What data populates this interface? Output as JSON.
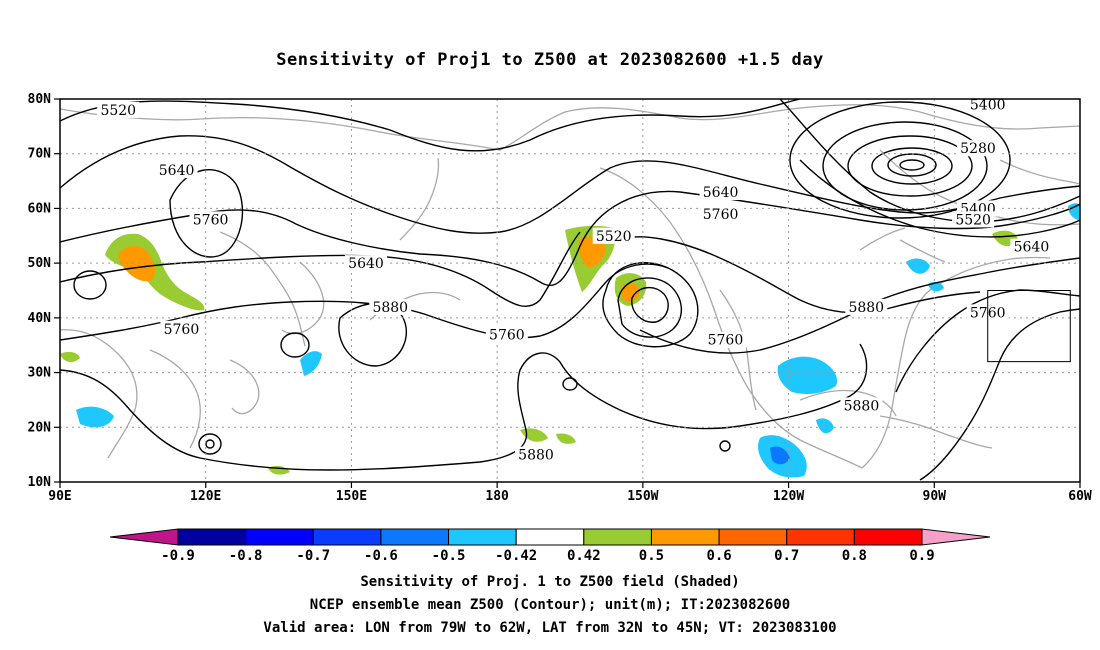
{
  "title": "Sensitivity of Proj1 to Z500 at 2023082600 +1.5 day",
  "map": {
    "lon_range": [
      90,
      300
    ],
    "lat_range": [
      10,
      80
    ],
    "lat_labels": [
      "80N",
      "70N",
      "60N",
      "50N",
      "40N",
      "30N",
      "20N",
      "10N"
    ],
    "lon_labels": [
      "90E",
      "120E",
      "150E",
      "180",
      "150W",
      "120W",
      "90W",
      "60W"
    ],
    "grid": "dotted",
    "valid_area_box": {
      "lon": [
        281,
        298
      ],
      "lat": [
        32,
        45
      ]
    }
  },
  "contour_labels": [
    {
      "text": "5520",
      "lon": 102,
      "lat": 78
    },
    {
      "text": "5640",
      "lon": 114,
      "lat": 67
    },
    {
      "text": "5760",
      "lon": 121,
      "lat": 58
    },
    {
      "text": "5640",
      "lon": 153,
      "lat": 50
    },
    {
      "text": "5880",
      "lon": 158,
      "lat": 42
    },
    {
      "text": "5760",
      "lon": 115,
      "lat": 38
    },
    {
      "text": "5760",
      "lon": 182,
      "lat": 37
    },
    {
      "text": "5520",
      "lon": 204,
      "lat": 55
    },
    {
      "text": "5640",
      "lon": 226,
      "lat": 63
    },
    {
      "text": "5760",
      "lon": 226,
      "lat": 59
    },
    {
      "text": "5760",
      "lon": 227,
      "lat": 36
    },
    {
      "text": "5880",
      "lon": 256,
      "lat": 42
    },
    {
      "text": "5880",
      "lon": 255,
      "lat": 24
    },
    {
      "text": "5880",
      "lon": 188,
      "lat": 15
    },
    {
      "text": "5400",
      "lon": 281,
      "lat": 79
    },
    {
      "text": "5280",
      "lon": 279,
      "lat": 71
    },
    {
      "text": "5400",
      "lon": 279,
      "lat": 60
    },
    {
      "text": "5520",
      "lon": 278,
      "lat": 58
    },
    {
      "text": "5640",
      "lon": 290,
      "lat": 53
    },
    {
      "text": "5760",
      "lon": 281,
      "lat": 41
    }
  ],
  "colorbar": {
    "labels": [
      "-0.9",
      "-0.8",
      "-0.7",
      "-0.6",
      "-0.5",
      "-0.42",
      "0.42",
      "0.5",
      "0.6",
      "0.7",
      "0.8",
      "0.9"
    ],
    "colors": [
      "#0000a0",
      "#0000ff",
      "#0a3cff",
      "#0a78ff",
      "#1ec8ff",
      "#ffffff",
      "#99cc33",
      "#ff9900",
      "#ff6600",
      "#ff3300",
      "#ff0000"
    ],
    "left_end_color": "#c0158a",
    "right_end_color": "#f5a0c8"
  },
  "footer": {
    "line1": "Sensitivity of Proj. 1 to Z500 field (Shaded)",
    "line2": "NCEP ensemble mean Z500 (Contour); unit(m); IT:2023082600",
    "line3": "Valid area: LON from 79W to 62W, LAT from 32N to 45N; VT: 2023083100"
  }
}
